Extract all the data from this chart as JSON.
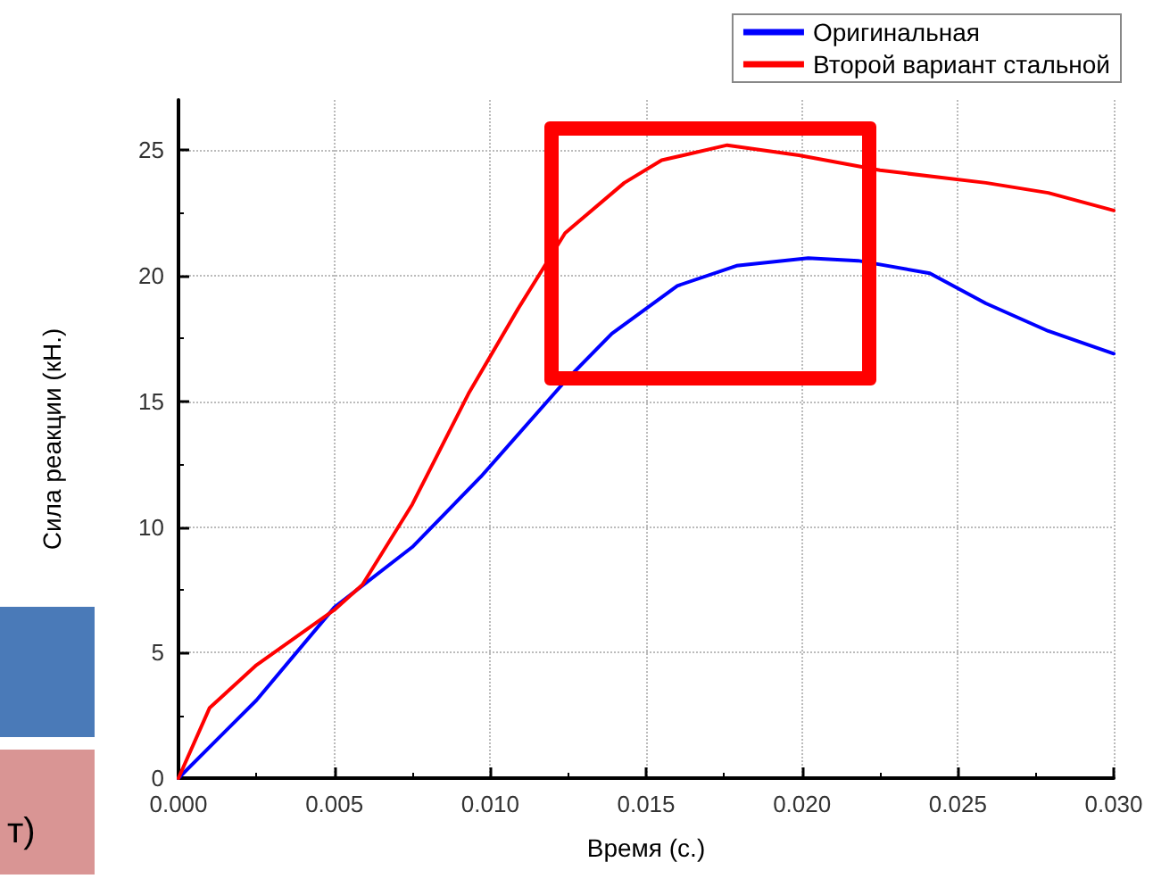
{
  "chart_data": {
    "type": "line",
    "xlabel": "Время (с.)",
    "ylabel": "Сила реакции (кН.)",
    "annotations": [
      "т)"
    ],
    "xlim": [
      0,
      0.03
    ],
    "ylim": [
      0,
      27
    ],
    "xticks": [
      {
        "value": 0,
        "label": "0.000"
      },
      {
        "value": 0.005,
        "label": "0.005"
      },
      {
        "value": 0.01,
        "label": "0.010"
      },
      {
        "value": 0.015,
        "label": "0.015"
      },
      {
        "value": 0.02,
        "label": "0.020"
      },
      {
        "value": 0.025,
        "label": "0.025"
      },
      {
        "value": 0.03,
        "label": "0.030"
      }
    ],
    "yticks": [
      0,
      5,
      10,
      15,
      20,
      25
    ],
    "grid": true,
    "legend": "top right",
    "marker": "none",
    "line_style": "solid",
    "series": [
      {
        "name": "Оригинальная",
        "color": "#0000ff",
        "x": [
          0,
          0.0025,
          0.005,
          0.0075,
          0.0097,
          0.0124,
          0.0139,
          0.016,
          0.0179,
          0.0202,
          0.0218,
          0.0241,
          0.0259,
          0.0279,
          0.03
        ],
        "values": [
          0,
          3.1,
          6.8,
          9.2,
          12.0,
          15.8,
          17.7,
          19.6,
          20.4,
          20.7,
          20.6,
          20.1,
          18.9,
          17.8,
          16.9
        ]
      },
      {
        "name": "Второй вариант стальной",
        "color": "#ff0000",
        "x": [
          0,
          0.001,
          0.0025,
          0.005,
          0.0059,
          0.0075,
          0.0093,
          0.0109,
          0.0124,
          0.0143,
          0.0155,
          0.0176,
          0.0199,
          0.0225,
          0.0259,
          0.0279,
          0.03
        ],
        "values": [
          0,
          2.8,
          4.5,
          6.7,
          7.7,
          10.9,
          15.3,
          18.7,
          21.7,
          23.7,
          24.6,
          25.2,
          24.8,
          24.2,
          23.7,
          23.3,
          22.6
        ]
      }
    ]
  }
}
